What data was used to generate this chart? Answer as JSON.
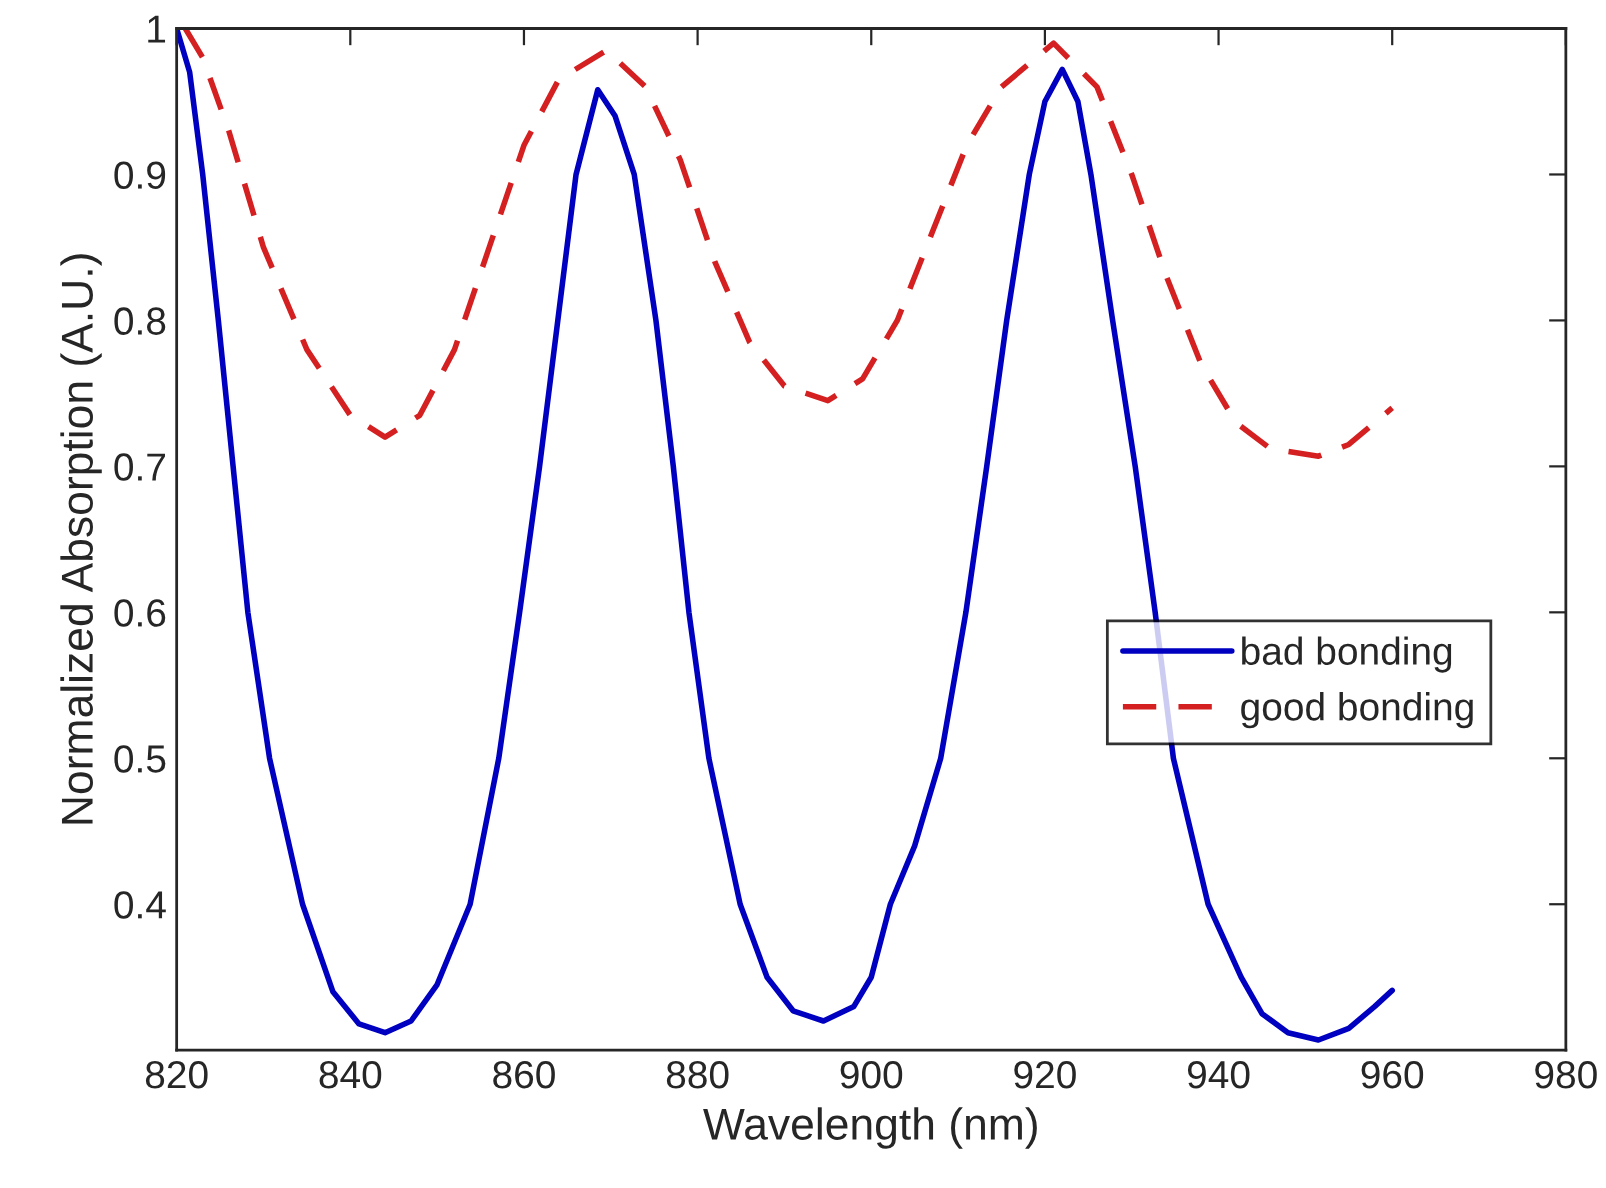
{
  "chart_data": {
    "type": "line",
    "xlabel": "Wavelength (nm)",
    "ylabel": "Normalized Absorption (A.U.)",
    "xlim": [
      820,
      980
    ],
    "xticks": [
      820,
      840,
      860,
      880,
      900,
      920,
      940,
      960,
      980
    ],
    "ylim": [
      0.3,
      1
    ],
    "yticks": [
      0.4,
      0.5,
      0.6,
      0.7,
      0.8,
      0.9,
      1
    ],
    "grid": false,
    "legend": "right",
    "marker": "none",
    "series": [
      {
        "name": "bad bonding",
        "color": "#0000c0",
        "line_style": "solid",
        "x": [
          820,
          821.5,
          823,
          824.8,
          826.5,
          828.2,
          830.7,
          834.5,
          838,
          841,
          844,
          847,
          850,
          853.8,
          857.1,
          859.5,
          861.8,
          863.9,
          866,
          868.5,
          870.5,
          872.7,
          875.2,
          877.2,
          879,
          881.3,
          884.9,
          888,
          891,
          894.5,
          898,
          900,
          902.2,
          905,
          908,
          910.9,
          913.3,
          915.6,
          918.2,
          920,
          922,
          923.8,
          925.3,
          927.8,
          930.4,
          932.7,
          934.8,
          936.8,
          938.8,
          942.6,
          945,
          948,
          951.5,
          955,
          958,
          960
        ],
        "values": [
          1.0,
          0.97,
          0.9,
          0.8,
          0.7,
          0.6,
          0.5,
          0.4,
          0.34,
          0.318,
          0.312,
          0.32,
          0.345,
          0.4,
          0.5,
          0.6,
          0.7,
          0.8,
          0.9,
          0.958,
          0.94,
          0.9,
          0.8,
          0.7,
          0.6,
          0.5,
          0.4,
          0.35,
          0.327,
          0.32,
          0.33,
          0.35,
          0.4,
          0.44,
          0.5,
          0.6,
          0.7,
          0.8,
          0.9,
          0.95,
          0.972,
          0.95,
          0.9,
          0.8,
          0.7,
          0.6,
          0.5,
          0.45,
          0.4,
          0.35,
          0.325,
          0.312,
          0.307,
          0.315,
          0.33,
          0.341
        ]
      },
      {
        "name": "good bonding",
        "color": "#d42020",
        "line_style": "dashed",
        "x": [
          821,
          823,
          826,
          830,
          835,
          840,
          844,
          848,
          852,
          856,
          860,
          864,
          869.5,
          874,
          878,
          882,
          886,
          890,
          895,
          899,
          903,
          907,
          911,
          915,
          921,
          926,
          930,
          934,
          938,
          942,
          946,
          951.5,
          955,
          960
        ],
        "values": [
          1.0,
          0.98,
          0.93,
          0.85,
          0.78,
          0.735,
          0.72,
          0.735,
          0.78,
          0.85,
          0.92,
          0.965,
          0.985,
          0.96,
          0.91,
          0.84,
          0.785,
          0.755,
          0.745,
          0.76,
          0.8,
          0.86,
          0.92,
          0.96,
          0.99,
          0.96,
          0.9,
          0.83,
          0.77,
          0.73,
          0.712,
          0.707,
          0.715,
          0.74
        ]
      }
    ]
  }
}
